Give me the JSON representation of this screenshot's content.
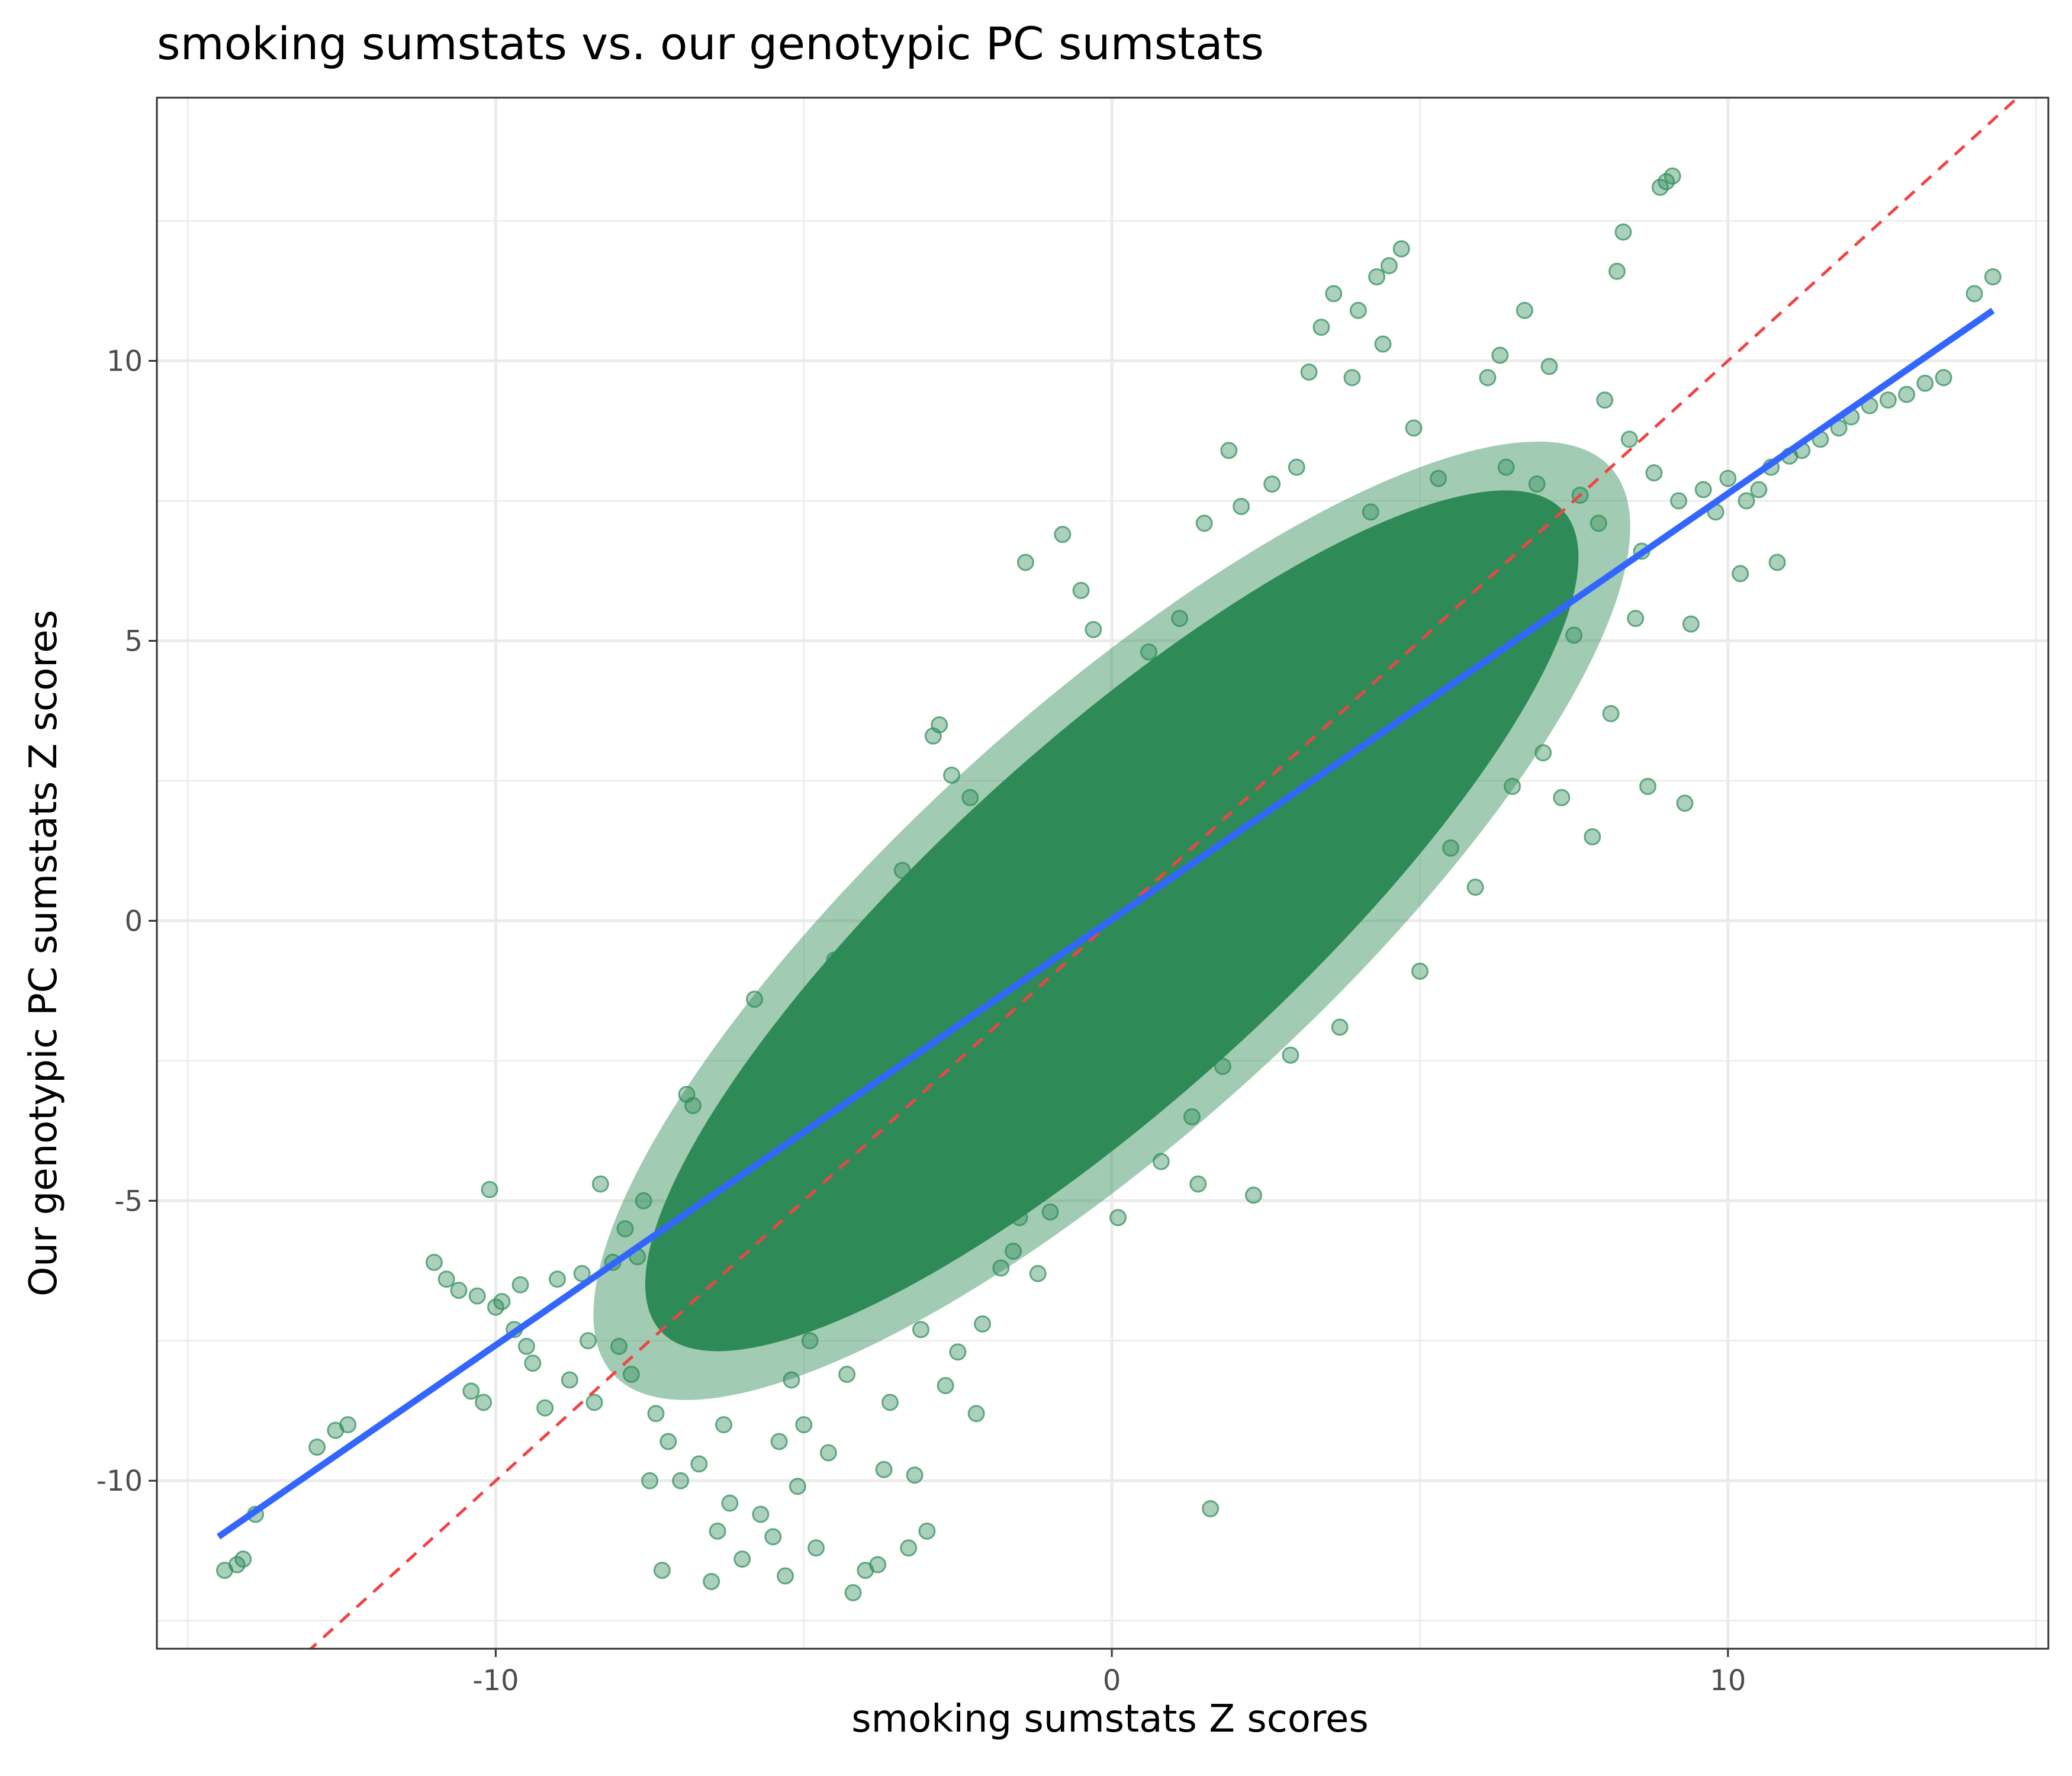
{
  "chart_data": {
    "type": "scatter",
    "title": "smoking sumstats vs. our genotypic PC sumstats",
    "xlabel": "smoking sumstats Z scores",
    "ylabel": "Our genotypic PC sumstats Z scores",
    "xlim": [
      -15.5,
      15.2
    ],
    "ylim": [
      -13.0,
      14.7
    ],
    "x_ticks": [
      -10,
      0,
      10
    ],
    "y_ticks": [
      -10,
      -5,
      0,
      5,
      10
    ],
    "x_tick_labels": [
      "-10",
      "0",
      "10"
    ],
    "y_tick_labels": [
      "-10",
      "-5",
      "0",
      "5",
      "10"
    ],
    "grid": true,
    "legend": "none",
    "point_color": "#2e8b57",
    "fit_line_color": "#3366ff",
    "reference_line_color": "#ef4444",
    "fit_line": {
      "x": [
        -14.5,
        14.3
      ],
      "y": [
        -11.0,
        10.9
      ]
    },
    "reference_line": {
      "slope": 1,
      "intercept": 0,
      "style": "dashed"
    },
    "series": [
      {
        "points": [
          [
            -14.4,
            -11.6
          ],
          [
            -14.2,
            -11.5
          ],
          [
            -14.1,
            -11.4
          ],
          [
            -13.9,
            -10.6
          ],
          [
            -12.9,
            -9.4
          ],
          [
            -12.6,
            -9.1
          ],
          [
            -12.4,
            -9.0
          ],
          [
            -11.0,
            -6.1
          ],
          [
            -10.8,
            -6.4
          ],
          [
            -10.6,
            -6.6
          ],
          [
            -10.4,
            -8.4
          ],
          [
            -10.3,
            -6.7
          ],
          [
            -10.2,
            -8.6
          ],
          [
            -10.1,
            -4.8
          ],
          [
            -10.0,
            -6.9
          ],
          [
            -9.9,
            -6.8
          ],
          [
            -9.7,
            -7.3
          ],
          [
            -9.6,
            -6.5
          ],
          [
            -9.5,
            -7.6
          ],
          [
            -9.4,
            -7.9
          ],
          [
            -9.2,
            -8.7
          ],
          [
            -9.0,
            -6.4
          ],
          [
            -8.8,
            -8.2
          ],
          [
            -8.6,
            -6.3
          ],
          [
            -8.5,
            -7.5
          ],
          [
            -8.4,
            -8.6
          ],
          [
            -8.3,
            -4.7
          ],
          [
            -8.1,
            -6.1
          ],
          [
            -8.0,
            -7.6
          ],
          [
            -7.9,
            -5.5
          ],
          [
            -7.8,
            -8.1
          ],
          [
            -7.7,
            -6.0
          ],
          [
            -7.6,
            -5.0
          ],
          [
            -7.5,
            -10.0
          ],
          [
            -7.4,
            -8.8
          ],
          [
            -7.3,
            -11.6
          ],
          [
            -7.2,
            -9.3
          ],
          [
            -7.1,
            -7.0
          ],
          [
            -7.0,
            -10.0
          ],
          [
            -6.9,
            -3.1
          ],
          [
            -6.8,
            -3.3
          ],
          [
            -6.7,
            -9.7
          ],
          [
            -6.6,
            -4.6
          ],
          [
            -6.5,
            -11.8
          ],
          [
            -6.4,
            -10.9
          ],
          [
            -6.3,
            -9.0
          ],
          [
            -6.2,
            -10.4
          ],
          [
            -6.0,
            -11.4
          ],
          [
            -5.9,
            -2.8
          ],
          [
            -5.8,
            -1.4
          ],
          [
            -5.7,
            -10.6
          ],
          [
            -5.6,
            -3.5
          ],
          [
            -5.5,
            -11.0
          ],
          [
            -5.4,
            -9.3
          ],
          [
            -5.3,
            -11.7
          ],
          [
            -5.2,
            -8.2
          ],
          [
            -5.1,
            -10.1
          ],
          [
            -5.0,
            -9.0
          ],
          [
            -4.9,
            -7.5
          ],
          [
            -4.8,
            -11.2
          ],
          [
            -4.6,
            -9.5
          ],
          [
            -4.5,
            -0.7
          ],
          [
            -4.4,
            -1.2
          ],
          [
            -4.3,
            -8.1
          ],
          [
            -4.2,
            -12.0
          ],
          [
            -4.1,
            -6.7
          ],
          [
            -4.0,
            -11.6
          ],
          [
            -3.9,
            -0.2
          ],
          [
            -3.8,
            -11.5
          ],
          [
            -3.7,
            -9.8
          ],
          [
            -3.6,
            -8.6
          ],
          [
            -3.5,
            -1.8
          ],
          [
            -3.4,
            0.9
          ],
          [
            -3.3,
            -11.2
          ],
          [
            -3.2,
            -9.9
          ],
          [
            -3.1,
            -7.3
          ],
          [
            -3.0,
            -10.9
          ],
          [
            -2.9,
            3.3
          ],
          [
            -2.8,
            3.5
          ],
          [
            -2.7,
            -8.3
          ],
          [
            -2.6,
            2.6
          ],
          [
            -2.5,
            -7.7
          ],
          [
            -2.4,
            -1.0
          ],
          [
            -2.3,
            2.2
          ],
          [
            -2.2,
            -8.8
          ],
          [
            -2.1,
            -7.2
          ],
          [
            -2.0,
            1.5
          ],
          [
            -1.8,
            -6.2
          ],
          [
            -1.6,
            -5.9
          ],
          [
            -1.5,
            -5.3
          ],
          [
            -1.4,
            6.4
          ],
          [
            -1.2,
            -6.3
          ],
          [
            -1.1,
            -4.3
          ],
          [
            -1.0,
            -5.2
          ],
          [
            -0.9,
            -4.0
          ],
          [
            -0.8,
            6.9
          ],
          [
            -0.7,
            -2.3
          ],
          [
            -0.6,
            -3.8
          ],
          [
            -0.5,
            5.9
          ],
          [
            -0.4,
            -1.1
          ],
          [
            -0.3,
            5.2
          ],
          [
            -0.2,
            -0.4
          ],
          [
            -0.1,
            -2.8
          ],
          [
            0.0,
            0.3
          ],
          [
            0.1,
            -5.3
          ],
          [
            0.2,
            3.5
          ],
          [
            0.3,
            -2.2
          ],
          [
            0.4,
            2.9
          ],
          [
            0.5,
            -1.4
          ],
          [
            0.6,
            4.8
          ],
          [
            0.7,
            1.1
          ],
          [
            0.8,
            -4.3
          ],
          [
            0.9,
            2.4
          ],
          [
            1.0,
            -1.7
          ],
          [
            1.1,
            5.4
          ],
          [
            1.2,
            0.5
          ],
          [
            1.3,
            -3.5
          ],
          [
            1.4,
            -4.7
          ],
          [
            1.5,
            7.1
          ],
          [
            1.6,
            -10.5
          ],
          [
            1.7,
            4.1
          ],
          [
            1.8,
            -2.6
          ],
          [
            1.9,
            8.4
          ],
          [
            2.0,
            -0.2
          ],
          [
            2.1,
            7.4
          ],
          [
            2.2,
            1.6
          ],
          [
            2.3,
            -4.9
          ],
          [
            2.4,
            3.7
          ],
          [
            2.5,
            -1.3
          ],
          [
            2.6,
            7.8
          ],
          [
            2.7,
            0.9
          ],
          [
            2.8,
            5.3
          ],
          [
            2.9,
            -2.4
          ],
          [
            3.0,
            8.1
          ],
          [
            3.1,
            2.8
          ],
          [
            3.2,
            9.8
          ],
          [
            3.3,
            -0.6
          ],
          [
            3.4,
            10.6
          ],
          [
            3.5,
            4.5
          ],
          [
            3.6,
            11.2
          ],
          [
            3.7,
            -1.9
          ],
          [
            3.8,
            6.6
          ],
          [
            3.9,
            9.7
          ],
          [
            4.0,
            10.9
          ],
          [
            4.1,
            1.7
          ],
          [
            4.2,
            7.3
          ],
          [
            4.3,
            11.5
          ],
          [
            4.4,
            10.3
          ],
          [
            4.5,
            11.7
          ],
          [
            4.6,
            3.2
          ],
          [
            4.7,
            12.0
          ],
          [
            4.8,
            6.0
          ],
          [
            4.9,
            8.8
          ],
          [
            5.0,
            -0.9
          ],
          [
            5.1,
            4.2
          ],
          [
            5.3,
            7.9
          ],
          [
            5.5,
            1.3
          ],
          [
            5.7,
            5.7
          ],
          [
            5.9,
            0.6
          ],
          [
            6.0,
            7.1
          ],
          [
            6.1,
            9.7
          ],
          [
            6.2,
            3.9
          ],
          [
            6.3,
            10.1
          ],
          [
            6.4,
            8.1
          ],
          [
            6.5,
            2.4
          ],
          [
            6.6,
            6.9
          ],
          [
            6.7,
            10.9
          ],
          [
            6.9,
            7.8
          ],
          [
            7.0,
            3.0
          ],
          [
            7.1,
            9.9
          ],
          [
            7.2,
            6.0
          ],
          [
            7.3,
            2.2
          ],
          [
            7.5,
            5.1
          ],
          [
            7.6,
            7.6
          ],
          [
            7.8,
            1.5
          ],
          [
            7.9,
            7.1
          ],
          [
            8.0,
            9.3
          ],
          [
            8.1,
            3.7
          ],
          [
            8.2,
            11.6
          ],
          [
            8.3,
            12.3
          ],
          [
            8.4,
            8.6
          ],
          [
            8.5,
            5.4
          ],
          [
            8.6,
            6.6
          ],
          [
            8.7,
            2.4
          ],
          [
            8.8,
            8.0
          ],
          [
            8.9,
            13.1
          ],
          [
            9.0,
            13.2
          ],
          [
            9.1,
            13.3
          ],
          [
            9.2,
            7.5
          ],
          [
            9.3,
            2.1
          ],
          [
            9.4,
            5.3
          ],
          [
            9.6,
            7.7
          ],
          [
            9.8,
            7.3
          ],
          [
            10.0,
            7.9
          ],
          [
            10.2,
            6.2
          ],
          [
            10.3,
            7.5
          ],
          [
            10.5,
            7.7
          ],
          [
            10.7,
            8.1
          ],
          [
            10.8,
            6.4
          ],
          [
            11.0,
            8.3
          ],
          [
            11.2,
            8.4
          ],
          [
            11.5,
            8.6
          ],
          [
            11.8,
            8.8
          ],
          [
            12.0,
            9.0
          ],
          [
            12.3,
            9.2
          ],
          [
            12.6,
            9.3
          ],
          [
            12.9,
            9.4
          ],
          [
            13.2,
            9.6
          ],
          [
            13.5,
            9.7
          ],
          [
            14.0,
            11.2
          ],
          [
            14.3,
            11.5
          ]
        ]
      }
    ]
  }
}
